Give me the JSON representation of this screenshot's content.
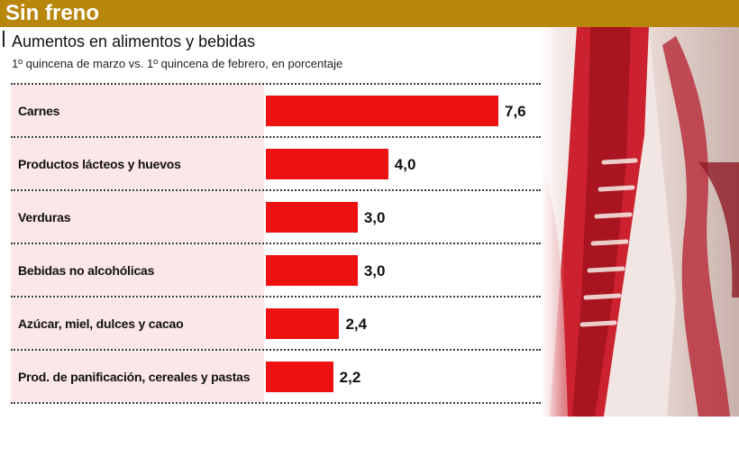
{
  "header": {
    "banner_title": "Sin freno"
  },
  "chart_data": {
    "type": "bar",
    "orientation": "horizontal",
    "title": "Aumentos en alimentos y bebidas",
    "subtitle": "1º quincena de marzo vs. 1º quincena de febrero, en porcentaje",
    "categories": [
      "Carnes",
      "Productos lácteos y huevos",
      "Verduras",
      "Bebidas no alcohólicas",
      "Azúcar, miel, dulces y cacao",
      "Prod. de panificación, cereales y pastas"
    ],
    "values": [
      7.6,
      4.0,
      3.0,
      3.0,
      2.4,
      2.2
    ],
    "value_labels": [
      "7,6",
      "4,0",
      "3,0",
      "3,0",
      "2,4",
      "2,2"
    ],
    "xlim": [
      0,
      7.6
    ],
    "grid": false,
    "legend": "none",
    "bar_color": "#ee1111"
  },
  "colors": {
    "banner": "#b8860b",
    "row_background": "#fbe6e8",
    "bar": "#ee1111"
  },
  "decoration": {
    "photo": "meat-carcass-photo"
  }
}
